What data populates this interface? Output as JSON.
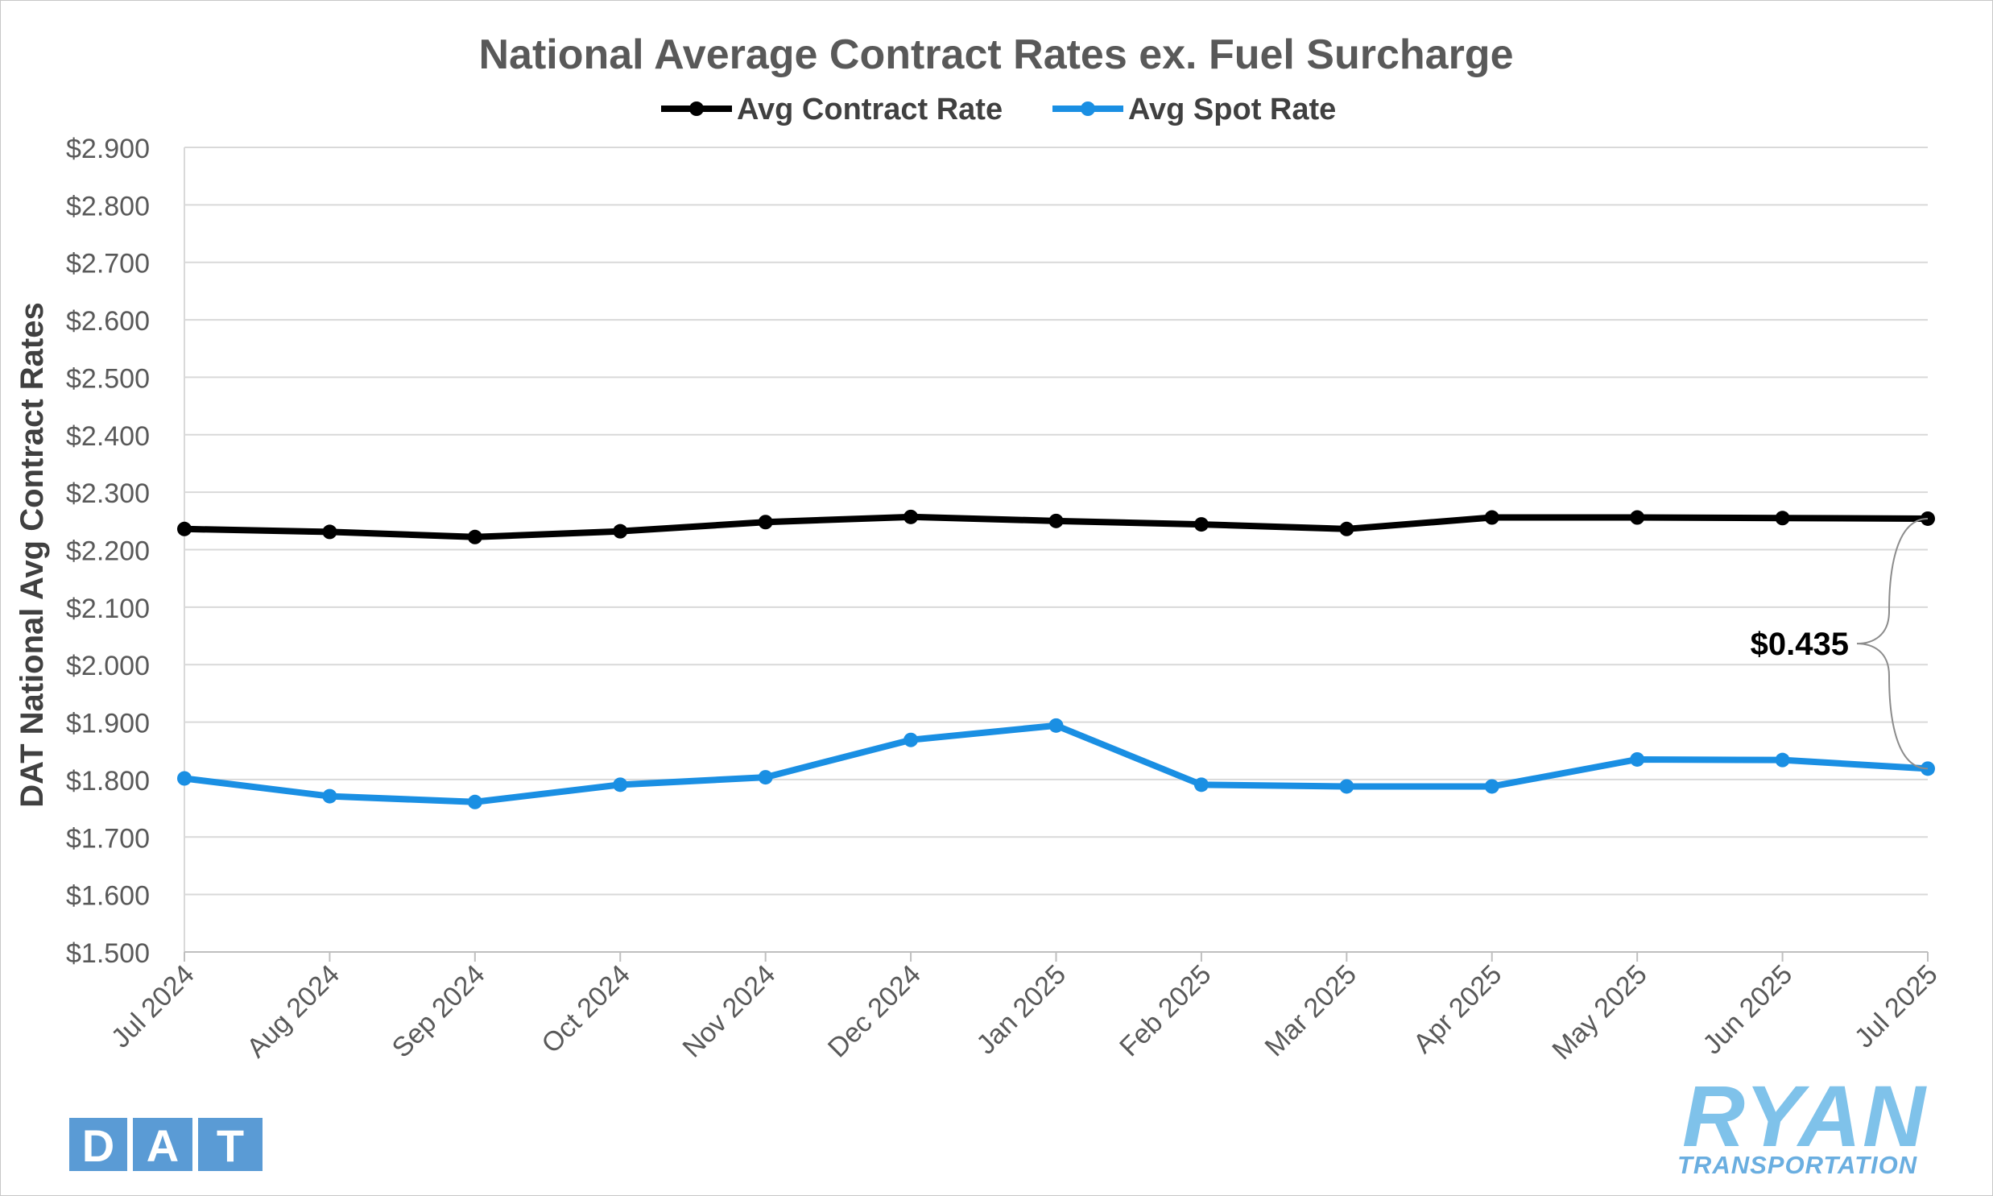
{
  "chart_data": {
    "type": "line",
    "title": "National Average Contract Rates ex. Fuel Surcharge",
    "ylabel": "DAT National Avg Contract Rates",
    "xlabel": "",
    "categories": [
      "Jul 2024",
      "Aug 2024",
      "Sep 2024",
      "Oct 2024",
      "Nov 2024",
      "Dec 2024",
      "Jan 2025",
      "Feb 2025",
      "Mar 2025",
      "Apr 2025",
      "May 2025",
      "Jun 2025",
      "Jul 2025"
    ],
    "ylim": [
      1.5,
      2.9
    ],
    "yticks": [
      1.5,
      1.6,
      1.7,
      1.8,
      1.9,
      2.0,
      2.1,
      2.2,
      2.3,
      2.4,
      2.5,
      2.6,
      2.7,
      2.8,
      2.9
    ],
    "ytick_labels": [
      "$1.500",
      "$1.600",
      "$1.700",
      "$1.800",
      "$1.900",
      "$2.000",
      "$2.100",
      "$2.200",
      "$2.300",
      "$2.400",
      "$2.500",
      "$2.600",
      "$2.700",
      "$2.800",
      "$2.900"
    ],
    "grid": "horizontal",
    "legend_position": "top-center",
    "series": [
      {
        "name": "Avg Contract Rate",
        "color": "#000000",
        "values": [
          2.236,
          2.231,
          2.222,
          2.232,
          2.248,
          2.257,
          2.25,
          2.244,
          2.236,
          2.256,
          2.256,
          2.255,
          2.254
        ]
      },
      {
        "name": "Avg Spot Rate",
        "color": "#1a8fe3",
        "values": [
          1.802,
          1.771,
          1.761,
          1.791,
          1.804,
          1.869,
          1.894,
          1.791,
          1.788,
          1.788,
          1.835,
          1.834,
          1.819
        ]
      }
    ],
    "annotations": [
      {
        "text": "$0.435",
        "category": "Jul 2025",
        "from_value": 2.254,
        "to_value": 1.819
      }
    ]
  },
  "logos": {
    "left": {
      "text": "DAT",
      "color": "#5a9bd5"
    },
    "right": {
      "text": "RYAN",
      "subtext": "TRANSPORTATION",
      "color": "#7fc2ea"
    }
  }
}
